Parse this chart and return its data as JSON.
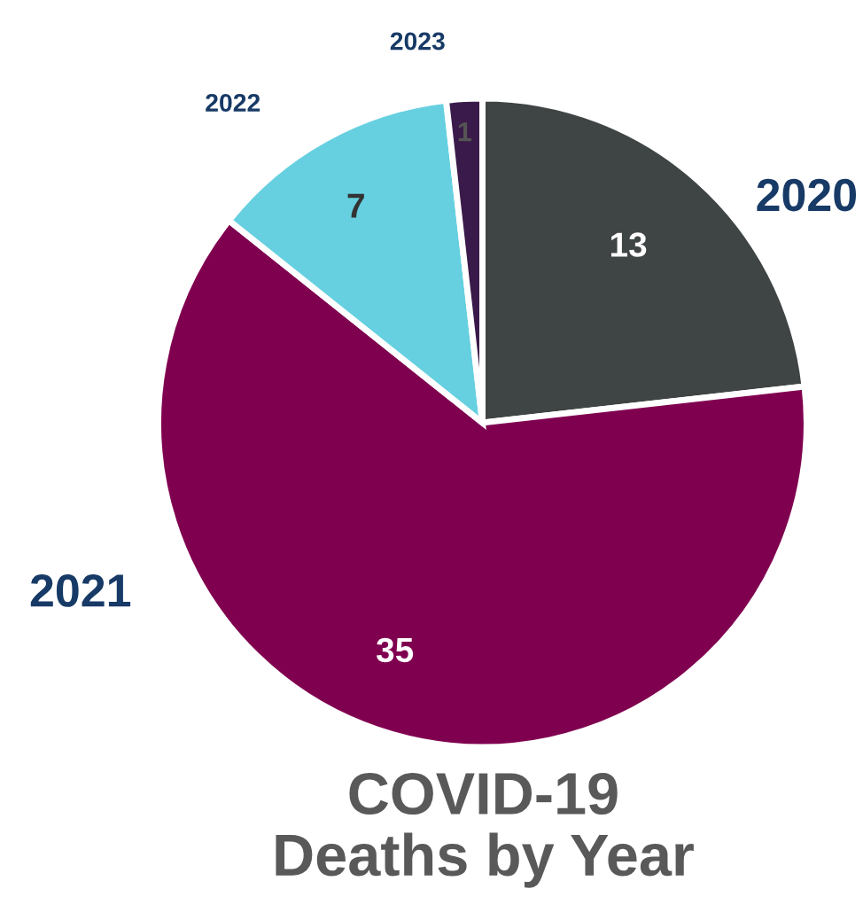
{
  "chart_data": {
    "type": "pie",
    "title": "COVID-19\nDeaths by Year",
    "categories": [
      "2020",
      "2021",
      "2022",
      "2023"
    ],
    "values": [
      13,
      35,
      7,
      1
    ],
    "colors": [
      "#3f4444",
      "#800050",
      "#66d0e0",
      "#3a1a4a"
    ],
    "data_labels": true,
    "legend": false
  }
}
